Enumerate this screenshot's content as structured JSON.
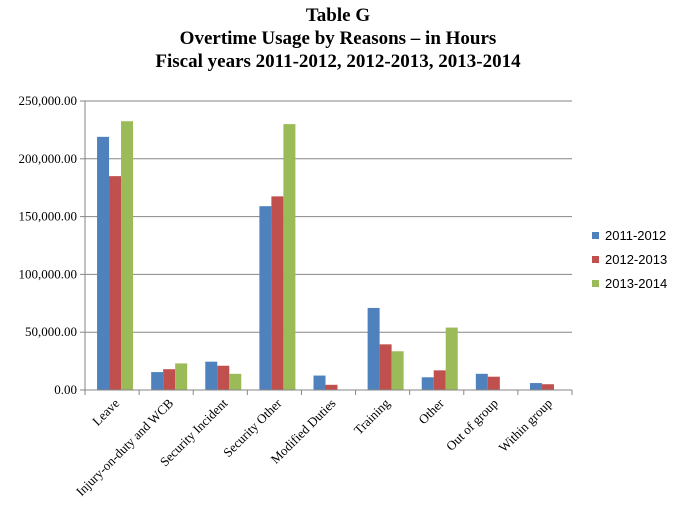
{
  "header": {
    "line1": "Table G",
    "line2": "Overtime Usage by Reasons – in Hours",
    "line3": "Fiscal years 2011-2012, 2012-2013, 2013-2014"
  },
  "chart_data": {
    "type": "bar",
    "title": "Table G Overtime Usage by Reasons – in Hours Fiscal years 2011-2012, 2012-2013, 2013-2014",
    "xlabel": "",
    "ylabel": "",
    "ylim": [
      0,
      250000
    ],
    "yticks": [
      0,
      50000,
      100000,
      150000,
      200000,
      250000
    ],
    "ytick_labels": [
      "0.00",
      "50,000.00",
      "100,000.00",
      "150,000.00",
      "200,000.00",
      "250,000.00"
    ],
    "grid": true,
    "legend_position": "right",
    "categories": [
      "Leave",
      "Injury-on-duty and WCB",
      "Security Incident",
      "Security Other",
      "Modified Duties",
      "Training",
      "Other",
      "Out of group",
      "Within group"
    ],
    "series": [
      {
        "name": "2011-2012",
        "color": "#4f81bd",
        "values": [
          219000,
          15500,
          24500,
          159000,
          12500,
          71000,
          11000,
          14000,
          6000
        ]
      },
      {
        "name": "2012-2013",
        "color": "#c0504d",
        "values": [
          185000,
          18000,
          21000,
          167500,
          4500,
          39500,
          17000,
          11500,
          5000
        ]
      },
      {
        "name": "2013-2014",
        "color": "#9bbb59",
        "values": [
          232500,
          23000,
          14000,
          230000,
          0,
          33500,
          54000,
          0,
          0
        ]
      }
    ]
  }
}
